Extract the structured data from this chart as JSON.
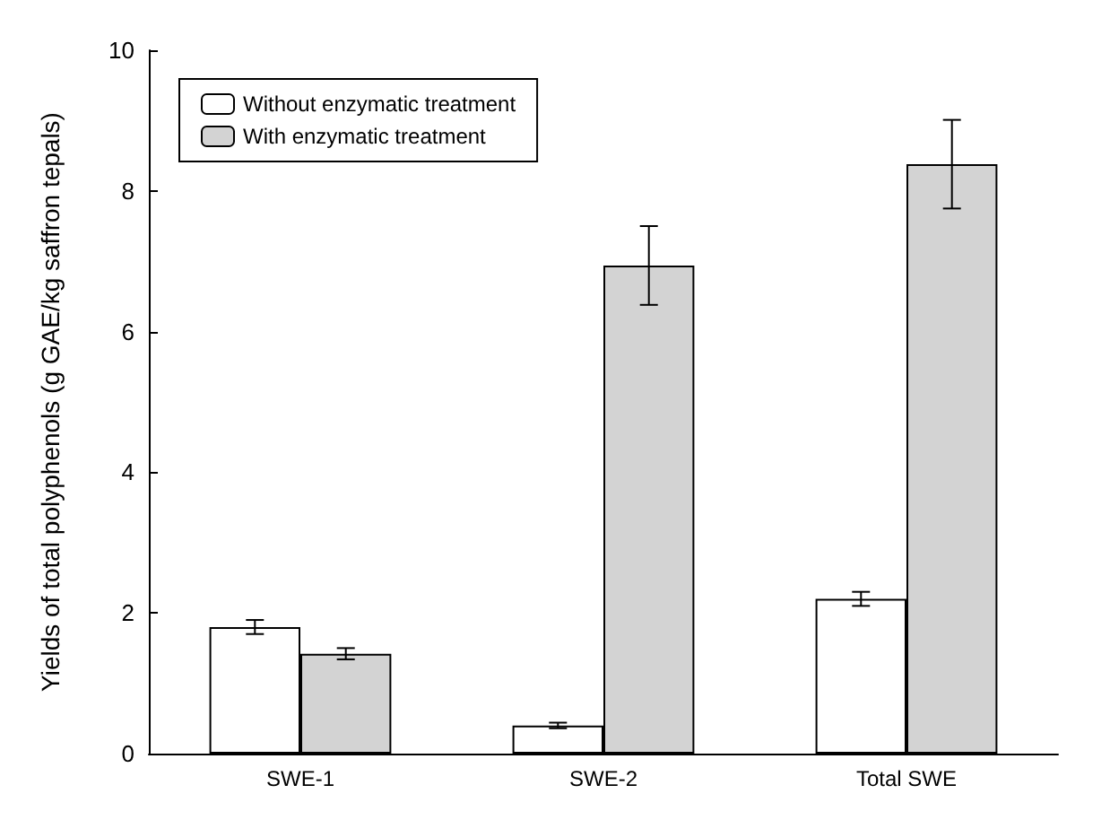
{
  "chart_data": {
    "type": "bar",
    "ylabel": "Yields of total polyphenols (g GAE/kg saffron tepals)",
    "categories": [
      "SWE-1",
      "SWE-2",
      "Total SWE"
    ],
    "series": [
      {
        "name": "Without enzymatic treatment",
        "color": "#ffffff",
        "values": [
          1.8,
          0.4,
          2.2
        ],
        "errors": [
          0.1,
          0.04,
          0.1
        ]
      },
      {
        "name": "With enzymatic treatment",
        "color": "#d3d3d3",
        "values": [
          1.42,
          6.94,
          8.38
        ],
        "errors": [
          0.08,
          0.56,
          0.63
        ]
      }
    ],
    "ylim": [
      0,
      10
    ],
    "yticks": [
      0,
      2,
      4,
      6,
      8,
      10
    ],
    "grid": false,
    "legend": "top left"
  }
}
